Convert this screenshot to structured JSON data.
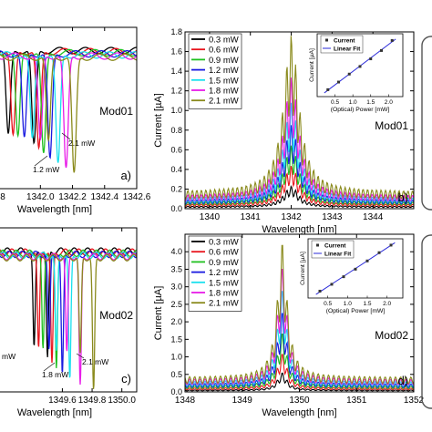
{
  "colors": {
    "0.3 mW": "#000000",
    "0.6 mW": "#e8141c",
    "0.9 mW": "#20c020",
    "1.2 mW": "#1a1ae0",
    "1.5 mW": "#19e0ee",
    "1.8 mW": "#e81ce8",
    "2.1 mW": "#8a8a1c",
    "fit_line": "#2a2ad8"
  },
  "chart_data": [
    {
      "id": "a",
      "type": "line",
      "panel_label": "a)",
      "annotation": "Mod01",
      "xlabel": "Wavelength [nm]",
      "ylabel": "",
      "xlim": [
        1341.72,
        1342.6
      ],
      "x_ticks": [
        "1342.0",
        "1342.2",
        "1342.4",
        "1342.6"
      ],
      "x_ticks_partial": [
        "8"
      ],
      "point_labels": [
        "1.2 mW",
        "2.1 mW"
      ],
      "series": [
        {
          "power": "0.3 mW",
          "dip": 1341.96
        },
        {
          "power": "0.6 mW",
          "dip": 1341.99
        },
        {
          "power": "0.9 mW",
          "dip": 1342.02
        },
        {
          "power": "1.2 mW",
          "dip": 1342.06
        },
        {
          "power": "1.5 mW",
          "dip": 1342.11
        },
        {
          "power": "1.8 mW",
          "dip": 1342.16
        },
        {
          "power": "2.1 mW",
          "dip": 1342.21
        }
      ]
    },
    {
      "id": "b",
      "type": "line",
      "panel_label": "b)",
      "annotation": "Mod01",
      "xlabel": "Wavelength [nm]",
      "ylabel": "Current [µA]",
      "xlim": [
        1339.4,
        1345.0
      ],
      "ylim": [
        0,
        1.8
      ],
      "x_ticks": [
        1340,
        1341,
        1342,
        1343,
        1344
      ],
      "y_ticks": [
        0.0,
        0.2,
        0.4,
        0.6,
        0.8,
        1.0,
        1.2,
        1.4,
        1.6,
        1.8
      ],
      "y_tick_labels": [
        "0.0",
        "0.2",
        "0.4",
        "0.6",
        "0.8",
        "1.0",
        "1.2",
        "1.4",
        "1.6",
        "1.8"
      ],
      "legend": [
        "0.3 mW",
        "0.6 mW",
        "0.9 mW",
        "1.2 mW",
        "1.5 mW",
        "1.8 mW",
        "2.1 mW"
      ],
      "series": [
        {
          "name": "0.3 mW",
          "peak_x": 1342.0,
          "peak_y": 0.23
        },
        {
          "name": "0.6 mW",
          "peak_x": 1342.0,
          "peak_y": 0.44
        },
        {
          "name": "0.9 mW",
          "peak_x": 1342.0,
          "peak_y": 0.65
        },
        {
          "name": "1.2 mW",
          "peak_x": 1342.0,
          "peak_y": 0.86
        },
        {
          "name": "1.5 mW",
          "peak_x": 1342.0,
          "peak_y": 1.09
        },
        {
          "name": "1.8 mW",
          "peak_x": 1342.0,
          "peak_y": 1.35
        },
        {
          "name": "2.1 mW",
          "peak_x": 1342.0,
          "peak_y": 1.78
        }
      ],
      "inset": {
        "xlabel": "(Optical) Power [mW]",
        "ylabel": "Current [µA]",
        "legend": [
          "Current",
          "Linear Fit"
        ],
        "xlim": [
          0,
          2.4
        ],
        "x_ticks": [
          "0.5",
          "1.0",
          "1.5",
          "2.0"
        ],
        "points": [
          [
            0.3,
            0.2
          ],
          [
            0.6,
            0.42
          ],
          [
            0.9,
            0.65
          ],
          [
            1.2,
            0.87
          ],
          [
            1.5,
            1.09
          ],
          [
            1.8,
            1.33
          ],
          [
            2.1,
            1.62
          ]
        ]
      }
    },
    {
      "id": "c",
      "type": "line",
      "panel_label": "c)",
      "annotation": "Mod02",
      "xlabel": "Wavelength [nm]",
      "ylabel": "",
      "xlim": [
        1349.15,
        1350.1
      ],
      "x_ticks": [
        "1349.6",
        "1349.8",
        "1350.0"
      ],
      "point_labels": [
        "mW",
        "1.8 mW",
        "2.1 mW"
      ],
      "series": [
        {
          "power": "0.3 mW",
          "dip": 1349.5
        },
        {
          "power": "0.6 mW",
          "dip": 1349.53
        },
        {
          "power": "0.9 mW",
          "dip": 1349.56
        },
        {
          "power": "1.2 mW",
          "dip": 1349.6
        },
        {
          "power": "1.5 mW",
          "dip": 1349.65
        },
        {
          "power": "1.8 mW",
          "dip": 1349.72
        },
        {
          "power": "2.1 mW",
          "dip": 1349.81
        }
      ]
    },
    {
      "id": "d",
      "type": "line",
      "panel_label": "d)",
      "annotation": "Mod02",
      "xlabel": "Wavelength [nm]",
      "ylabel": "Current [µA]",
      "xlim": [
        1348,
        1352
      ],
      "ylim": [
        0,
        4.5
      ],
      "x_ticks": [
        1348,
        1349,
        1350,
        1351,
        1352
      ],
      "y_ticks": [
        0.0,
        0.5,
        1.0,
        1.5,
        2.0,
        2.5,
        3.0,
        3.5,
        4.0
      ],
      "y_tick_labels": [
        "0.0",
        "0.5",
        "1.0",
        "1.5",
        "2.0",
        "2.5",
        "3.0",
        "3.5",
        "4.0"
      ],
      "legend": [
        "0.3 mW",
        "0.6 mW",
        "0.9 mW",
        "1.2 mW",
        "1.5 mW",
        "1.8 mW",
        "2.1 mW"
      ],
      "series": [
        {
          "name": "0.3 mW",
          "peak_x": 1349.7,
          "peak_y": 0.55
        },
        {
          "name": "0.6 mW",
          "peak_x": 1349.7,
          "peak_y": 1.1
        },
        {
          "name": "0.9 mW",
          "peak_x": 1349.7,
          "peak_y": 1.7
        },
        {
          "name": "1.2 mW",
          "peak_x": 1349.7,
          "peak_y": 2.3
        },
        {
          "name": "1.5 mW",
          "peak_x": 1349.7,
          "peak_y": 2.95
        },
        {
          "name": "1.8 mW",
          "peak_x": 1349.7,
          "peak_y": 3.6
        },
        {
          "name": "2.1 mW",
          "peak_x": 1349.7,
          "peak_y": 4.3
        }
      ],
      "inset": {
        "xlabel": "(Optical) Power [mW]",
        "ylabel": "Current [µA]",
        "legend": [
          "Current",
          "Linear Fit"
        ],
        "xlim": [
          0,
          2.4
        ],
        "x_ticks": [
          "0.5",
          "1.0",
          "1.5",
          "2.0"
        ],
        "points": [
          [
            0.3,
            0.5
          ],
          [
            0.6,
            1.0
          ],
          [
            0.9,
            1.55
          ],
          [
            1.2,
            2.1
          ],
          [
            1.5,
            2.7
          ],
          [
            1.8,
            3.3
          ],
          [
            2.1,
            3.85
          ]
        ]
      }
    }
  ]
}
